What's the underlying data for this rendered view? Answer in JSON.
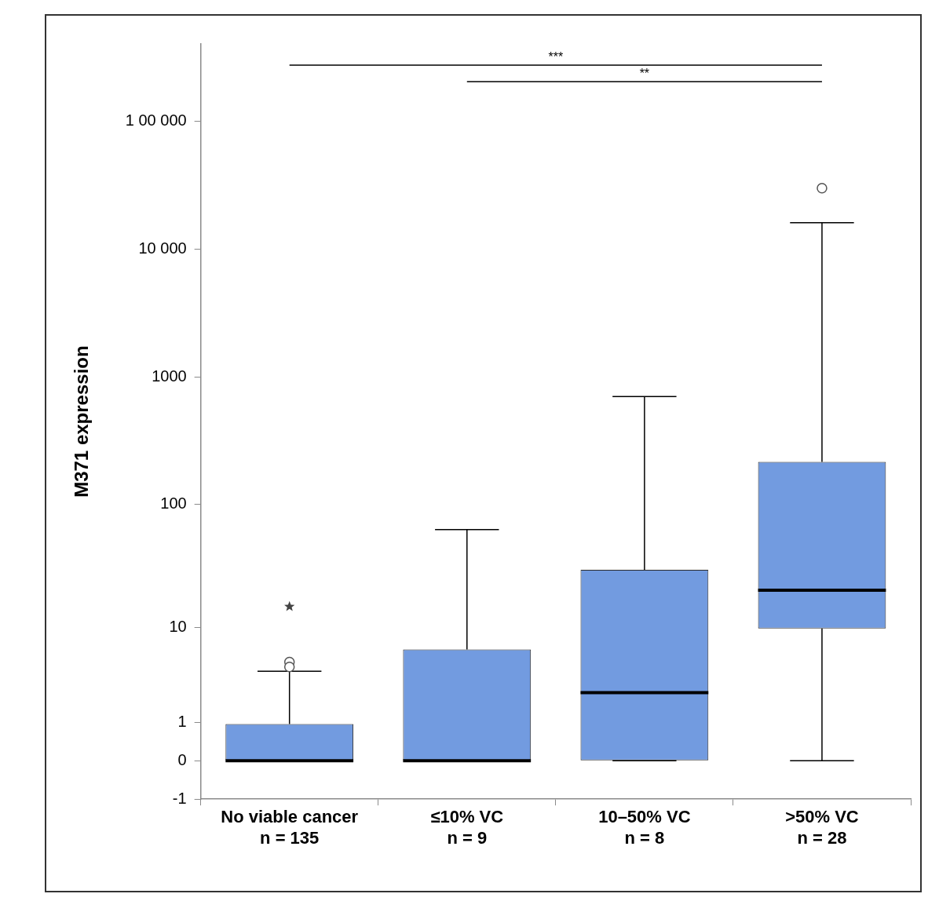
{
  "chart_data": {
    "type": "box",
    "y_label": "M371 expression",
    "categories": [
      "No viable cancer",
      "≤10% VC",
      "10–50% VC",
      ">50% VC"
    ],
    "n_labels": [
      "n = 135",
      "n = 9",
      "n = 8",
      "n = 28"
    ],
    "boxes": [
      {
        "whisker_low": 0,
        "q1": 0,
        "median": 0,
        "q3": 0.93,
        "whisker_high": 4,
        "outliers": [
          {
            "value": 4.9,
            "marker": "circle"
          },
          {
            "value": 4.4,
            "marker": "circle"
          },
          {
            "value": 15,
            "marker": "star"
          }
        ]
      },
      {
        "whisker_low": 0,
        "q1": 0,
        "median": 0,
        "q3": 6.4,
        "whisker_high": 63,
        "outliers": []
      },
      {
        "whisker_low": 0,
        "q1": 0,
        "median": 2.4,
        "q3": 30,
        "whisker_high": 700,
        "outliers": []
      },
      {
        "whisker_low": 0,
        "q1": 9.8,
        "median": 20.5,
        "q3": 215,
        "whisker_high": 16000,
        "outliers": [
          {
            "value": 29800,
            "marker": "circle"
          }
        ]
      }
    ],
    "color": "#729be0",
    "log": "y",
    "ylim": [
      -1,
      400000
    ],
    "yticks": [
      -1,
      0,
      1,
      10,
      100,
      1000,
      {
        "value": 10000,
        "label": "10 000"
      },
      {
        "value": 100000,
        "label": "1 00 000"
      }
    ],
    "grid": false,
    "annotations": [
      {
        "from": "No viable cancer",
        "to": ">50% VC",
        "text": "***"
      },
      {
        "from": "≤10% VC",
        "to": ">50% VC",
        "text": "**"
      }
    ]
  }
}
